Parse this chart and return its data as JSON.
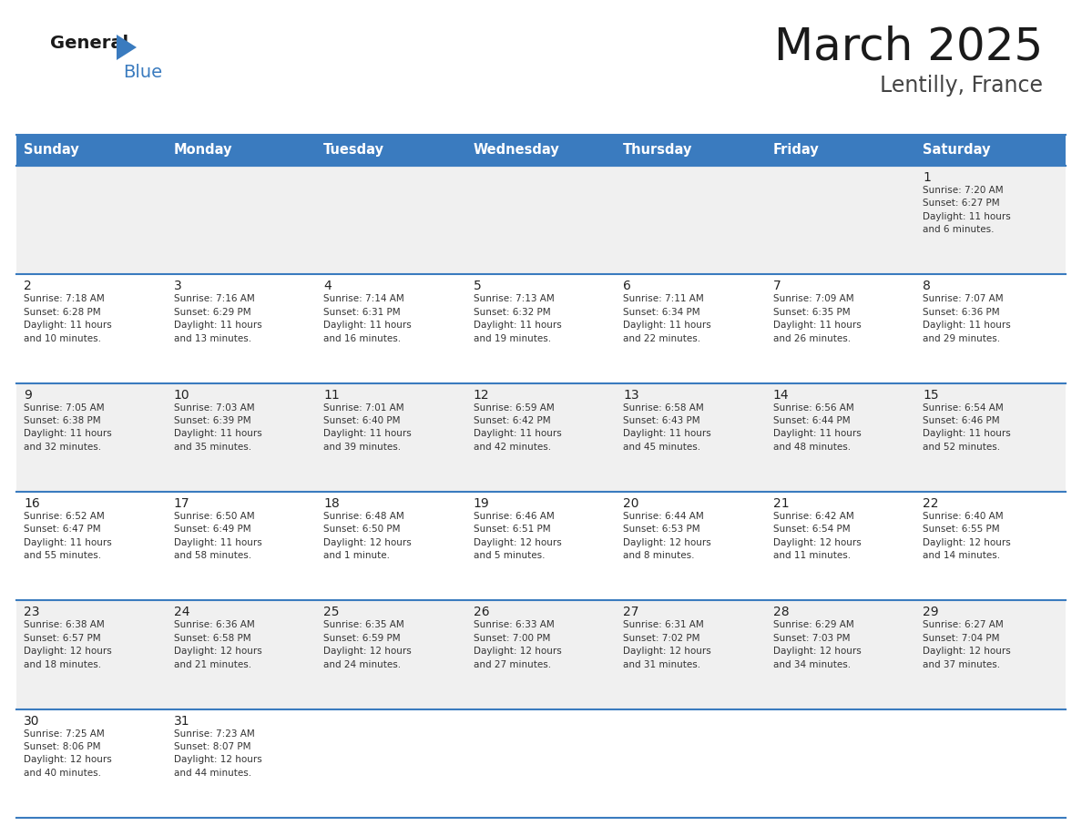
{
  "title": "March 2025",
  "subtitle": "Lentilly, France",
  "days_of_week": [
    "Sunday",
    "Monday",
    "Tuesday",
    "Wednesday",
    "Thursday",
    "Friday",
    "Saturday"
  ],
  "header_bg": "#3a7bbf",
  "header_text": "#ffffff",
  "row_bg_odd": "#f0f0f0",
  "row_bg_even": "#ffffff",
  "border_color": "#3a7bbf",
  "day_number_color": "#222222",
  "cell_text_color": "#333333",
  "title_color": "#1a1a1a",
  "subtitle_color": "#444444",
  "calendar": [
    [
      {
        "day": null,
        "info": ""
      },
      {
        "day": null,
        "info": ""
      },
      {
        "day": null,
        "info": ""
      },
      {
        "day": null,
        "info": ""
      },
      {
        "day": null,
        "info": ""
      },
      {
        "day": null,
        "info": ""
      },
      {
        "day": 1,
        "info": "Sunrise: 7:20 AM\nSunset: 6:27 PM\nDaylight: 11 hours\nand 6 minutes."
      }
    ],
    [
      {
        "day": 2,
        "info": "Sunrise: 7:18 AM\nSunset: 6:28 PM\nDaylight: 11 hours\nand 10 minutes."
      },
      {
        "day": 3,
        "info": "Sunrise: 7:16 AM\nSunset: 6:29 PM\nDaylight: 11 hours\nand 13 minutes."
      },
      {
        "day": 4,
        "info": "Sunrise: 7:14 AM\nSunset: 6:31 PM\nDaylight: 11 hours\nand 16 minutes."
      },
      {
        "day": 5,
        "info": "Sunrise: 7:13 AM\nSunset: 6:32 PM\nDaylight: 11 hours\nand 19 minutes."
      },
      {
        "day": 6,
        "info": "Sunrise: 7:11 AM\nSunset: 6:34 PM\nDaylight: 11 hours\nand 22 minutes."
      },
      {
        "day": 7,
        "info": "Sunrise: 7:09 AM\nSunset: 6:35 PM\nDaylight: 11 hours\nand 26 minutes."
      },
      {
        "day": 8,
        "info": "Sunrise: 7:07 AM\nSunset: 6:36 PM\nDaylight: 11 hours\nand 29 minutes."
      }
    ],
    [
      {
        "day": 9,
        "info": "Sunrise: 7:05 AM\nSunset: 6:38 PM\nDaylight: 11 hours\nand 32 minutes."
      },
      {
        "day": 10,
        "info": "Sunrise: 7:03 AM\nSunset: 6:39 PM\nDaylight: 11 hours\nand 35 minutes."
      },
      {
        "day": 11,
        "info": "Sunrise: 7:01 AM\nSunset: 6:40 PM\nDaylight: 11 hours\nand 39 minutes."
      },
      {
        "day": 12,
        "info": "Sunrise: 6:59 AM\nSunset: 6:42 PM\nDaylight: 11 hours\nand 42 minutes."
      },
      {
        "day": 13,
        "info": "Sunrise: 6:58 AM\nSunset: 6:43 PM\nDaylight: 11 hours\nand 45 minutes."
      },
      {
        "day": 14,
        "info": "Sunrise: 6:56 AM\nSunset: 6:44 PM\nDaylight: 11 hours\nand 48 minutes."
      },
      {
        "day": 15,
        "info": "Sunrise: 6:54 AM\nSunset: 6:46 PM\nDaylight: 11 hours\nand 52 minutes."
      }
    ],
    [
      {
        "day": 16,
        "info": "Sunrise: 6:52 AM\nSunset: 6:47 PM\nDaylight: 11 hours\nand 55 minutes."
      },
      {
        "day": 17,
        "info": "Sunrise: 6:50 AM\nSunset: 6:49 PM\nDaylight: 11 hours\nand 58 minutes."
      },
      {
        "day": 18,
        "info": "Sunrise: 6:48 AM\nSunset: 6:50 PM\nDaylight: 12 hours\nand 1 minute."
      },
      {
        "day": 19,
        "info": "Sunrise: 6:46 AM\nSunset: 6:51 PM\nDaylight: 12 hours\nand 5 minutes."
      },
      {
        "day": 20,
        "info": "Sunrise: 6:44 AM\nSunset: 6:53 PM\nDaylight: 12 hours\nand 8 minutes."
      },
      {
        "day": 21,
        "info": "Sunrise: 6:42 AM\nSunset: 6:54 PM\nDaylight: 12 hours\nand 11 minutes."
      },
      {
        "day": 22,
        "info": "Sunrise: 6:40 AM\nSunset: 6:55 PM\nDaylight: 12 hours\nand 14 minutes."
      }
    ],
    [
      {
        "day": 23,
        "info": "Sunrise: 6:38 AM\nSunset: 6:57 PM\nDaylight: 12 hours\nand 18 minutes."
      },
      {
        "day": 24,
        "info": "Sunrise: 6:36 AM\nSunset: 6:58 PM\nDaylight: 12 hours\nand 21 minutes."
      },
      {
        "day": 25,
        "info": "Sunrise: 6:35 AM\nSunset: 6:59 PM\nDaylight: 12 hours\nand 24 minutes."
      },
      {
        "day": 26,
        "info": "Sunrise: 6:33 AM\nSunset: 7:00 PM\nDaylight: 12 hours\nand 27 minutes."
      },
      {
        "day": 27,
        "info": "Sunrise: 6:31 AM\nSunset: 7:02 PM\nDaylight: 12 hours\nand 31 minutes."
      },
      {
        "day": 28,
        "info": "Sunrise: 6:29 AM\nSunset: 7:03 PM\nDaylight: 12 hours\nand 34 minutes."
      },
      {
        "day": 29,
        "info": "Sunrise: 6:27 AM\nSunset: 7:04 PM\nDaylight: 12 hours\nand 37 minutes."
      }
    ],
    [
      {
        "day": 30,
        "info": "Sunrise: 7:25 AM\nSunset: 8:06 PM\nDaylight: 12 hours\nand 40 minutes."
      },
      {
        "day": 31,
        "info": "Sunrise: 7:23 AM\nSunset: 8:07 PM\nDaylight: 12 hours\nand 44 minutes."
      },
      {
        "day": null,
        "info": ""
      },
      {
        "day": null,
        "info": ""
      },
      {
        "day": null,
        "info": ""
      },
      {
        "day": null,
        "info": ""
      },
      {
        "day": null,
        "info": ""
      }
    ]
  ],
  "logo_general_color": "#1a1a1a",
  "logo_blue_color": "#3a7bbf",
  "logo_triangle_color": "#3a7bbf"
}
